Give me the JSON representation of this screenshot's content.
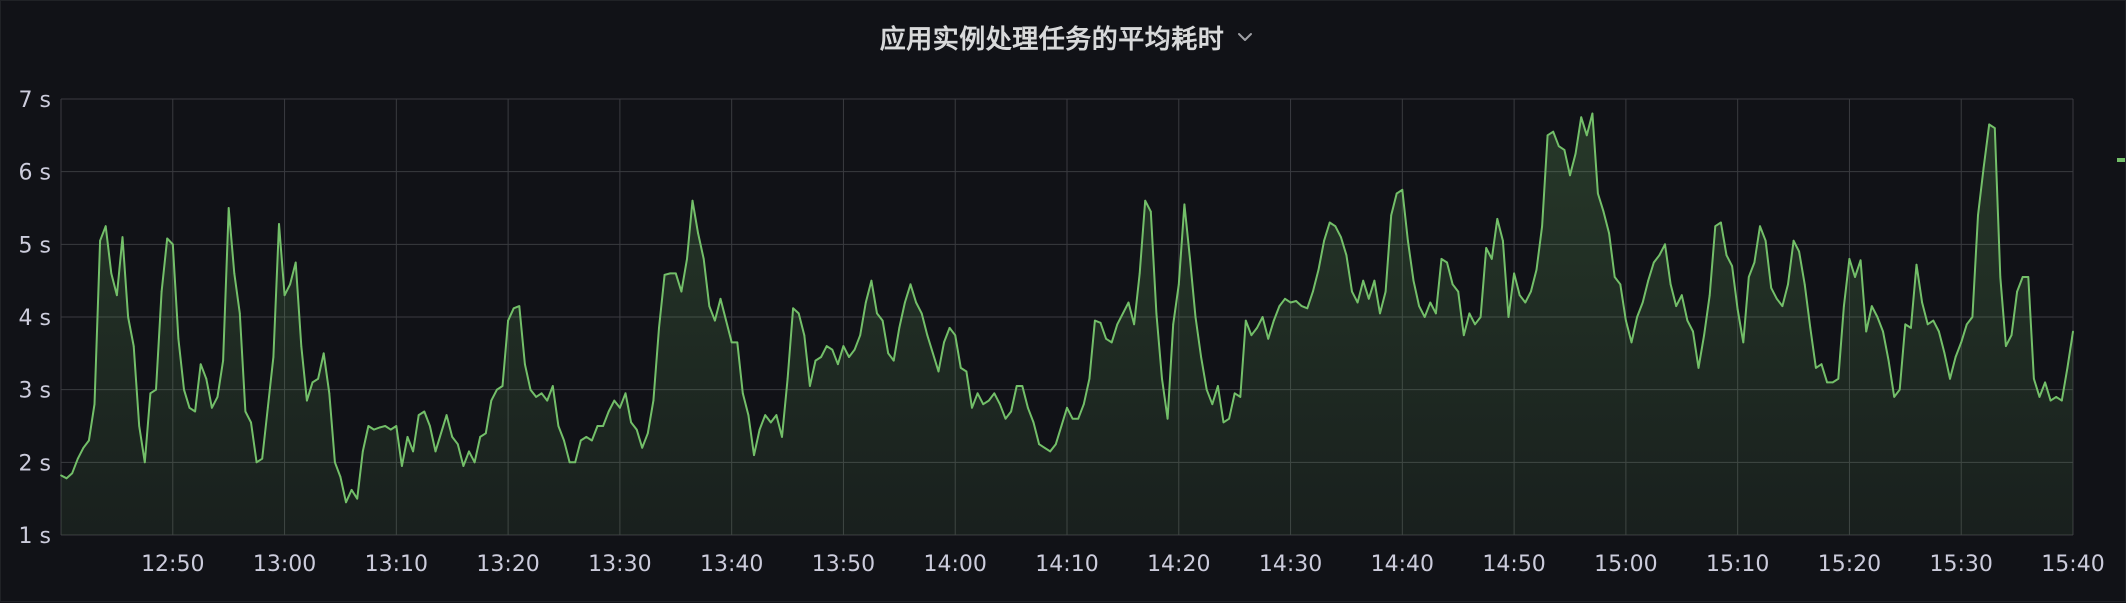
{
  "panel": {
    "title": "应用实例处理任务的平均耗时"
  },
  "colors": {
    "background": "#111217",
    "grid": "#3a3b40",
    "series": "#73bf69",
    "text": "#ccccdc"
  },
  "chart_data": {
    "type": "area",
    "title": "应用实例处理任务的平均耗时",
    "xlabel": "",
    "ylabel": "",
    "ylim": [
      1,
      7
    ],
    "xlim": [
      "12:40",
      "15:40"
    ],
    "grid": true,
    "legend": "right (collapsed)",
    "y_ticks": [
      1,
      2,
      3,
      4,
      5,
      6,
      7
    ],
    "y_tick_labels": [
      "1 s",
      "2 s",
      "3 s",
      "4 s",
      "5 s",
      "6 s",
      "7 s"
    ],
    "x_tick_labels": [
      "12:50",
      "13:00",
      "13:10",
      "13:20",
      "13:30",
      "13:40",
      "13:50",
      "14:00",
      "14:10",
      "14:20",
      "14:30",
      "14:40",
      "14:50",
      "15:00",
      "15:10",
      "15:20",
      "15:30",
      "15:40"
    ],
    "x_tick_minutes": [
      10,
      20,
      30,
      40,
      50,
      60,
      70,
      80,
      90,
      100,
      110,
      120,
      130,
      140,
      150,
      160,
      170,
      180
    ],
    "series": [
      {
        "unit": "s",
        "x_minutes": [
          0,
          0.5,
          1,
          1.5,
          2,
          2.5,
          3,
          3.5,
          4,
          4.5,
          5,
          5.5,
          6,
          6.5,
          7,
          7.5,
          8,
          8.5,
          9,
          9.5,
          10,
          10.5,
          11,
          11.5,
          12,
          12.5,
          13,
          13.5,
          14,
          14.5,
          15,
          15.5,
          16,
          16.5,
          17,
          17.5,
          18,
          18.5,
          19,
          19.5,
          20,
          20.5,
          21,
          21.5,
          22,
          22.5,
          23,
          23.5,
          24,
          24.5,
          25,
          25.5,
          26,
          26.5,
          27,
          27.5,
          28,
          28.5,
          29,
          29.5,
          30,
          30.5,
          31,
          31.5,
          32,
          32.5,
          33,
          33.5,
          34,
          34.5,
          35,
          35.5,
          36,
          36.5,
          37,
          37.5,
          38,
          38.5,
          39,
          39.5,
          40,
          40.5,
          41,
          41.5,
          42,
          42.5,
          43,
          43.5,
          44,
          44.5,
          45,
          45.5,
          46,
          46.5,
          47,
          47.5,
          48,
          48.5,
          49,
          49.5,
          50,
          50.5,
          51,
          51.5,
          52,
          52.5,
          53,
          53.5,
          54,
          54.5,
          55,
          55.5,
          56,
          56.5,
          57,
          57.5,
          58,
          58.5,
          59,
          59.5,
          60,
          60.5,
          61,
          61.5,
          62,
          62.5,
          63,
          63.5,
          64,
          64.5,
          65,
          65.5,
          66,
          66.5,
          67,
          67.5,
          68,
          68.5,
          69,
          69.5,
          70,
          70.5,
          71,
          71.5,
          72,
          72.5,
          73,
          73.5,
          74,
          74.5,
          75,
          75.5,
          76,
          76.5,
          77,
          77.5,
          78,
          78.5,
          79,
          79.5,
          80,
          80.5,
          81,
          81.5,
          82,
          82.5,
          83,
          83.5,
          84,
          84.5,
          85,
          85.5,
          86,
          86.5,
          87,
          87.5,
          88,
          88.5,
          89,
          89.5,
          90,
          90.5,
          91,
          91.5,
          92,
          92.5,
          93,
          93.5,
          94,
          94.5,
          95,
          95.5,
          96,
          96.5,
          97,
          97.5,
          98,
          98.5,
          99,
          99.5,
          100,
          100.5,
          101,
          101.5,
          102,
          102.5,
          103,
          103.5,
          104,
          104.5,
          105,
          105.5,
          106,
          106.5,
          107,
          107.5,
          108,
          108.5,
          109,
          109.5,
          110,
          110.5,
          111,
          111.5,
          112,
          112.5,
          113,
          113.5,
          114,
          114.5,
          115,
          115.5,
          116,
          116.5,
          117,
          117.5,
          118,
          118.5,
          119,
          119.5,
          120,
          120.5,
          121,
          121.5,
          122,
          122.5,
          123,
          123.5,
          124,
          124.5,
          125,
          125.5,
          126,
          126.5,
          127,
          127.5,
          128,
          128.5,
          129,
          129.5,
          130,
          130.5,
          131,
          131.5,
          132,
          132.5,
          133,
          133.5,
          134,
          134.5,
          135,
          135.5,
          136,
          136.5,
          137,
          137.5,
          138,
          138.5,
          139,
          139.5,
          140,
          140.5,
          141,
          141.5,
          142,
          142.5,
          143,
          143.5,
          144,
          144.5,
          145,
          145.5,
          146,
          146.5,
          147,
          147.5,
          148,
          148.5,
          149,
          149.5,
          150,
          150.5,
          151,
          151.5,
          152,
          152.5,
          153,
          153.5,
          154,
          154.5,
          155,
          155.5,
          156,
          156.5,
          157,
          157.5,
          158,
          158.5,
          159,
          159.5,
          160,
          160.5,
          161,
          161.5,
          162,
          162.5,
          163,
          163.5,
          164,
          164.5,
          165,
          165.5,
          166,
          166.5,
          167,
          167.5,
          168,
          168.5,
          169,
          169.5,
          170,
          170.5,
          171,
          171.5,
          172,
          172.5,
          173,
          173.5,
          174,
          174.5,
          175,
          175.5,
          176,
          176.5,
          177,
          177.5,
          178,
          178.5,
          179,
          179.5,
          180
        ],
        "values": [
          1.82,
          1.78,
          1.85,
          2.05,
          2.2,
          2.3,
          2.8,
          5.05,
          5.25,
          4.6,
          4.3,
          5.1,
          4.0,
          3.6,
          2.5,
          2.0,
          2.95,
          3.0,
          4.35,
          5.08,
          5.0,
          3.7,
          3.0,
          2.75,
          2.7,
          3.35,
          3.15,
          2.75,
          2.9,
          3.4,
          5.5,
          4.6,
          4.05,
          2.7,
          2.55,
          2.0,
          2.05,
          2.75,
          3.45,
          5.28,
          4.3,
          4.45,
          4.75,
          3.6,
          2.85,
          3.1,
          3.15,
          3.5,
          2.95,
          2.0,
          1.8,
          1.45,
          1.62,
          1.5,
          2.15,
          2.5,
          2.45,
          2.48,
          2.5,
          2.45,
          2.5,
          1.95,
          2.35,
          2.15,
          2.65,
          2.7,
          2.5,
          2.15,
          2.4,
          2.65,
          2.35,
          2.25,
          1.95,
          2.15,
          2.0,
          2.35,
          2.4,
          2.85,
          3.0,
          3.05,
          3.95,
          4.12,
          4.15,
          3.35,
          3.0,
          2.9,
          2.95,
          2.85,
          3.05,
          2.5,
          2.3,
          2.0,
          2.0,
          2.3,
          2.35,
          2.3,
          2.5,
          2.5,
          2.7,
          2.85,
          2.75,
          2.95,
          2.55,
          2.45,
          2.2,
          2.4,
          2.85,
          3.85,
          4.58,
          4.6,
          4.6,
          4.35,
          4.8,
          5.6,
          5.15,
          4.8,
          4.15,
          3.95,
          4.25,
          3.95,
          3.65,
          3.65,
          2.95,
          2.65,
          2.1,
          2.45,
          2.65,
          2.55,
          2.65,
          2.35,
          3.15,
          4.12,
          4.05,
          3.75,
          3.05,
          3.4,
          3.45,
          3.6,
          3.55,
          3.35,
          3.6,
          3.45,
          3.55,
          3.75,
          4.2,
          4.5,
          4.05,
          3.95,
          3.5,
          3.4,
          3.85,
          4.2,
          4.45,
          4.2,
          4.05,
          3.75,
          3.5,
          3.25,
          3.65,
          3.85,
          3.75,
          3.3,
          3.25,
          2.75,
          2.95,
          2.8,
          2.85,
          2.95,
          2.8,
          2.6,
          2.7,
          3.05,
          3.05,
          2.75,
          2.55,
          2.25,
          2.2,
          2.15,
          2.25,
          2.5,
          2.75,
          2.6,
          2.6,
          2.8,
          3.15,
          3.95,
          3.92,
          3.7,
          3.65,
          3.9,
          4.05,
          4.2,
          3.9,
          4.6,
          5.6,
          5.45,
          4.05,
          3.15,
          2.6,
          3.9,
          4.45,
          5.55,
          4.8,
          4.0,
          3.45,
          3.0,
          2.8,
          3.05,
          2.55,
          2.6,
          2.95,
          2.9,
          3.95,
          3.75,
          3.85,
          4.0,
          3.7,
          3.95,
          4.15,
          4.25,
          4.2,
          4.22,
          4.15,
          4.12,
          4.35,
          4.65,
          5.05,
          5.3,
          5.25,
          5.1,
          4.85,
          4.35,
          4.2,
          4.5,
          4.25,
          4.5,
          4.05,
          4.35,
          5.4,
          5.7,
          5.75,
          5.05,
          4.5,
          4.15,
          4.0,
          4.2,
          4.05,
          4.8,
          4.75,
          4.45,
          4.35,
          3.75,
          4.05,
          3.9,
          4.0,
          4.95,
          4.8,
          5.35,
          5.05,
          4.0,
          4.6,
          4.3,
          4.2,
          4.35,
          4.65,
          5.25,
          6.5,
          6.55,
          6.35,
          6.3,
          5.95,
          6.25,
          6.75,
          6.5,
          6.8,
          5.7,
          5.45,
          5.15,
          4.55,
          4.45,
          3.95,
          3.65,
          4.0,
          4.2,
          4.5,
          4.75,
          4.85,
          5.0,
          4.45,
          4.15,
          4.3,
          3.95,
          3.8,
          3.3,
          3.75,
          4.3,
          5.25,
          5.3,
          4.85,
          4.7,
          4.1,
          3.65,
          4.55,
          4.75,
          5.25,
          5.05,
          4.4,
          4.25,
          4.15,
          4.45,
          5.05,
          4.9,
          4.45,
          3.85,
          3.3,
          3.35,
          3.1,
          3.1,
          3.15,
          4.15,
          4.8,
          4.55,
          4.78,
          3.8,
          4.15,
          4.0,
          3.8,
          3.4,
          2.9,
          3.0,
          3.9,
          3.85,
          4.72,
          4.2,
          3.9,
          3.95,
          3.8,
          3.5,
          3.15,
          3.45,
          3.65,
          3.9,
          4.0,
          5.4,
          6.05,
          6.65,
          6.6,
          4.55,
          3.6,
          3.75,
          4.35,
          4.55,
          4.55,
          3.15,
          2.9,
          3.1,
          2.85,
          2.9,
          2.85,
          3.3,
          3.8
        ]
      }
    ]
  }
}
